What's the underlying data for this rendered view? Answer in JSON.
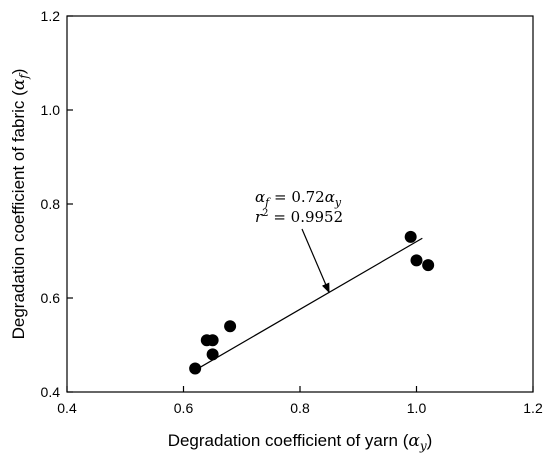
{
  "chart_data": {
    "type": "scatter",
    "title": "",
    "xlabel_prefix": "Degradation coefficient of yarn (",
    "xlabel_symbol": "α",
    "xlabel_sub": "y",
    "xlabel_suffix": ")",
    "ylabel_prefix": "Degradation coefficient of fabric (",
    "ylabel_symbol": "α",
    "ylabel_sub": "f",
    "ylabel_suffix": ")",
    "xlim": [
      0.4,
      1.2
    ],
    "ylim": [
      0.4,
      1.2
    ],
    "x_ticks": [
      "0.4",
      "0.6",
      "0.8",
      "1.0",
      "1.2"
    ],
    "y_ticks": [
      "0.4",
      "0.6",
      "0.8",
      "1.0",
      "1.2"
    ],
    "grid": false,
    "points": [
      {
        "x": 0.62,
        "y": 0.45
      },
      {
        "x": 0.64,
        "y": 0.51
      },
      {
        "x": 0.65,
        "y": 0.51
      },
      {
        "x": 0.65,
        "y": 0.48
      },
      {
        "x": 0.68,
        "y": 0.54
      },
      {
        "x": 0.99,
        "y": 0.73
      },
      {
        "x": 1.0,
        "y": 0.68
      },
      {
        "x": 1.02,
        "y": 0.67
      }
    ],
    "fit_line": {
      "slope": 0.72,
      "x": [
        0.62,
        1.01
      ]
    },
    "annotation": {
      "line1": "α_f = 0.72α_y",
      "line2": "r² = 0.9952",
      "arrow_target": {
        "x": 0.85,
        "y": 0.612
      }
    },
    "marker_color": "#000000"
  }
}
